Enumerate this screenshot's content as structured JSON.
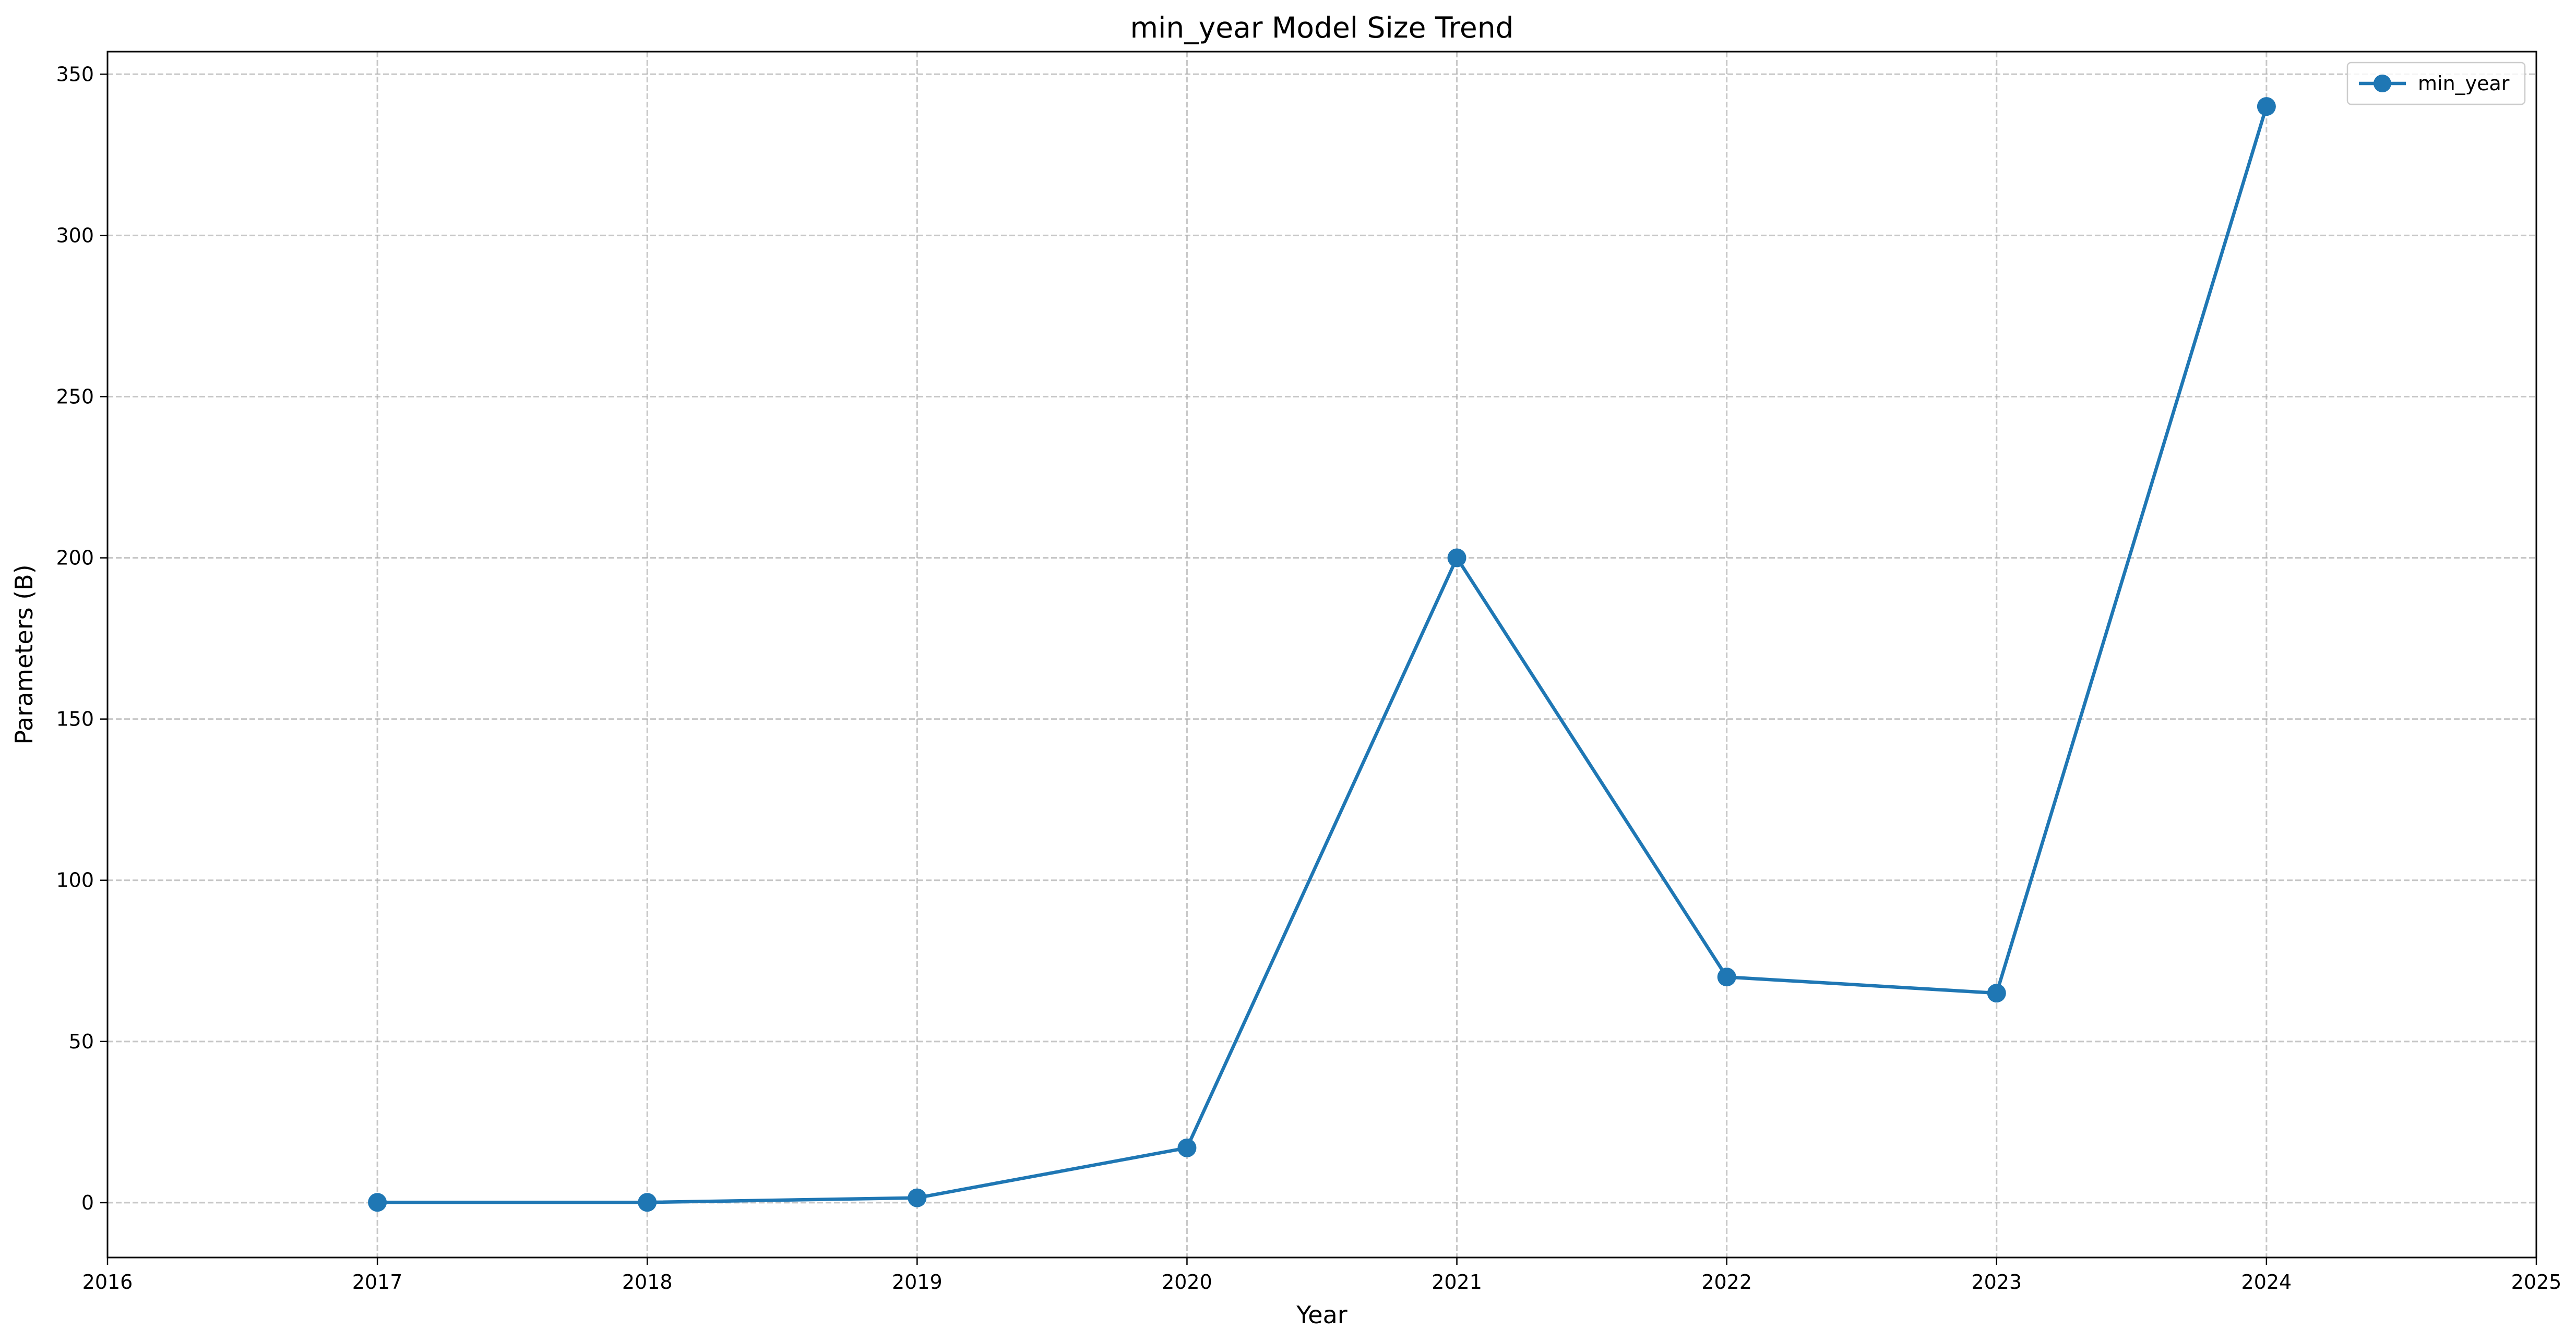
{
  "chart_data": {
    "type": "line",
    "title": "min_year Model Size Trend",
    "xlabel": "Year",
    "ylabel": "Parameters (B)",
    "xlim": [
      2016,
      2025
    ],
    "ylim": [
      -17,
      357
    ],
    "xticks": [
      2016,
      2017,
      2018,
      2019,
      2020,
      2021,
      2022,
      2023,
      2024,
      2025
    ],
    "yticks": [
      0,
      50,
      100,
      150,
      200,
      250,
      300,
      350
    ],
    "grid": true,
    "legend_position": "top-right",
    "series": [
      {
        "name": "min_year",
        "color": "#1f77b4",
        "marker": "circle",
        "x": [
          2017,
          2018,
          2019,
          2020,
          2021,
          2022,
          2023,
          2024
        ],
        "y": [
          0.1,
          0.1,
          1.5,
          17,
          200,
          70,
          65,
          340
        ]
      }
    ]
  }
}
